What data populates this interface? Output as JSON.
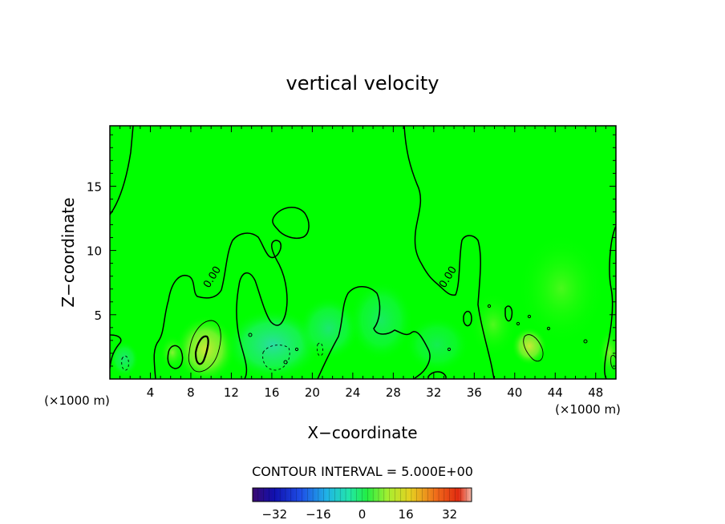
{
  "chart_data": {
    "type": "heatmap",
    "title": "vertical velocity",
    "xlabel": "X−coordinate",
    "ylabel": "Z−coordinate",
    "x_unit_left": "(×1000 m)",
    "x_unit_right": "(×1000 m)",
    "xlim": [
      0,
      50
    ],
    "ylim": [
      0,
      19.7
    ],
    "x_ticks": [
      4,
      8,
      12,
      16,
      20,
      24,
      28,
      32,
      36,
      40,
      44,
      48
    ],
    "y_ticks": [
      5,
      10,
      15
    ],
    "grid": false,
    "contour_interval_text": "CONTOUR INTERVAL = 5.000E+00",
    "contour_labels": [
      {
        "text": "0.00",
        "x": 10.5,
        "z": 8.0
      },
      {
        "text": "0.00",
        "x": 34.0,
        "z": 8.2
      }
    ],
    "colorbar": {
      "range": [
        -40,
        40
      ],
      "ticks": [
        -32,
        -16,
        0,
        16,
        32
      ],
      "tick_labels": [
        "−32",
        "−16",
        "0",
        "16",
        "32"
      ]
    },
    "colors": {
      "background_field": "#00ff00",
      "updraft": "#b4f03c",
      "downdraft": "#32e6a0"
    }
  }
}
